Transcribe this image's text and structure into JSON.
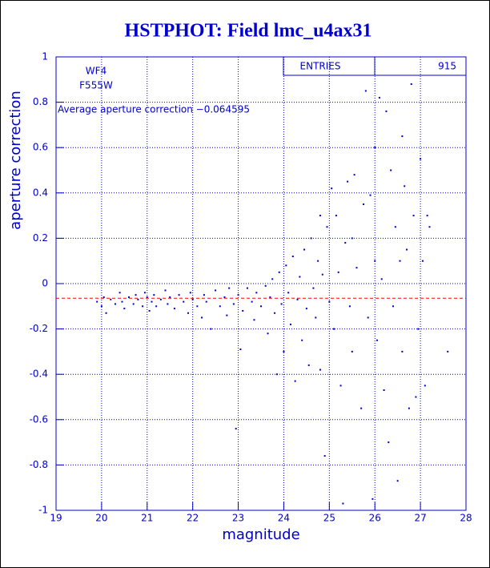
{
  "chart_data": {
    "type": "scatter",
    "title": "HSTPHOT: Field lmc_u4ax31",
    "x_label": "magnitude",
    "y_label": "aperture correction",
    "annotations": [
      "WF4",
      "F555W",
      "Average aperture correction −0.064595"
    ],
    "average_line": -0.064595,
    "average_line_color": "#ff0000",
    "stats": {
      "label": "ENTRIES",
      "value": 915
    },
    "color": "#0000cc",
    "grid": true,
    "xlim": [
      19,
      28
    ],
    "ylim": [
      -1,
      1
    ],
    "xticks": [
      19,
      20,
      21,
      22,
      23,
      24,
      25,
      26,
      27,
      28
    ],
    "yticks": [
      -1,
      -0.8,
      -0.6,
      -0.4,
      -0.2,
      0,
      0.2,
      0.4,
      0.6,
      0.8,
      1
    ],
    "x": [
      19.9,
      20.0,
      20.05,
      20.1,
      20.2,
      20.3,
      20.4,
      20.45,
      20.5,
      20.6,
      20.7,
      20.75,
      20.8,
      20.9,
      20.95,
      21.0,
      21.05,
      21.1,
      21.15,
      21.2,
      21.3,
      21.4,
      21.45,
      21.5,
      21.6,
      21.7,
      21.8,
      21.9,
      21.95,
      22.0,
      22.1,
      22.2,
      22.25,
      22.3,
      22.4,
      22.5,
      22.6,
      22.7,
      22.75,
      22.8,
      22.9,
      22.95,
      23.0,
      23.05,
      23.1,
      23.2,
      23.3,
      23.35,
      23.4,
      23.5,
      23.6,
      23.65,
      23.7,
      23.75,
      23.8,
      23.85,
      23.9,
      23.95,
      24.0,
      24.05,
      24.1,
      24.15,
      24.2,
      24.25,
      24.3,
      24.35,
      24.4,
      24.45,
      24.5,
      24.55,
      24.6,
      24.65,
      24.7,
      24.75,
      24.8,
      24.85,
      24.9,
      24.95,
      25.0,
      25.05,
      25.1,
      25.15,
      25.2,
      25.25,
      25.3,
      25.35,
      25.4,
      25.45,
      25.5,
      25.55,
      25.6,
      25.7,
      25.75,
      25.8,
      25.85,
      25.9,
      25.95,
      26.0,
      26.05,
      26.1,
      26.15,
      26.2,
      26.25,
      26.3,
      26.35,
      26.4,
      26.45,
      26.5,
      26.55,
      26.6,
      26.65,
      26.7,
      26.75,
      26.8,
      26.85,
      26.9,
      26.95,
      27.0,
      27.05,
      27.1,
      27.15,
      27.2,
      27.6,
      26.6,
      25.5,
      26.0,
      24.8
    ],
    "values": [
      -0.08,
      -0.1,
      -0.06,
      -0.13,
      -0.07,
      -0.09,
      -0.04,
      -0.08,
      -0.11,
      -0.06,
      -0.09,
      -0.05,
      -0.07,
      -0.1,
      -0.04,
      -0.06,
      -0.12,
      -0.08,
      -0.05,
      -0.1,
      -0.07,
      -0.03,
      -0.09,
      -0.06,
      -0.11,
      -0.05,
      -0.08,
      -0.13,
      -0.04,
      -0.07,
      -0.1,
      -0.15,
      -0.05,
      -0.08,
      -0.2,
      -0.03,
      -0.1,
      -0.06,
      -0.14,
      -0.02,
      -0.09,
      -0.64,
      -0.05,
      -0.29,
      -0.12,
      -0.02,
      -0.08,
      -0.16,
      -0.04,
      -0.1,
      -0.01,
      -0.22,
      -0.06,
      0.02,
      -0.13,
      -0.4,
      0.05,
      -0.09,
      -0.3,
      0.08,
      -0.04,
      -0.18,
      0.12,
      -0.43,
      -0.07,
      0.03,
      -0.25,
      0.15,
      -0.11,
      -0.36,
      0.2,
      -0.02,
      -0.15,
      0.1,
      -0.38,
      0.04,
      -0.76,
      0.25,
      -0.08,
      0.42,
      -0.2,
      0.3,
      0.05,
      -0.45,
      -0.97,
      0.18,
      0.45,
      -0.1,
      -0.3,
      0.48,
      0.07,
      -0.55,
      0.35,
      0.85,
      -0.15,
      0.39,
      -0.95,
      0.6,
      -0.25,
      0.82,
      0.02,
      -0.47,
      0.76,
      -0.7,
      0.5,
      -0.1,
      0.25,
      -0.87,
      0.1,
      -0.3,
      0.43,
      0.15,
      -0.55,
      0.88,
      0.3,
      -0.5,
      -0.2,
      0.55,
      0.1,
      -0.45,
      0.3,
      0.25,
      -0.3,
      0.65,
      0.2,
      0.1,
      0.3
    ]
  }
}
